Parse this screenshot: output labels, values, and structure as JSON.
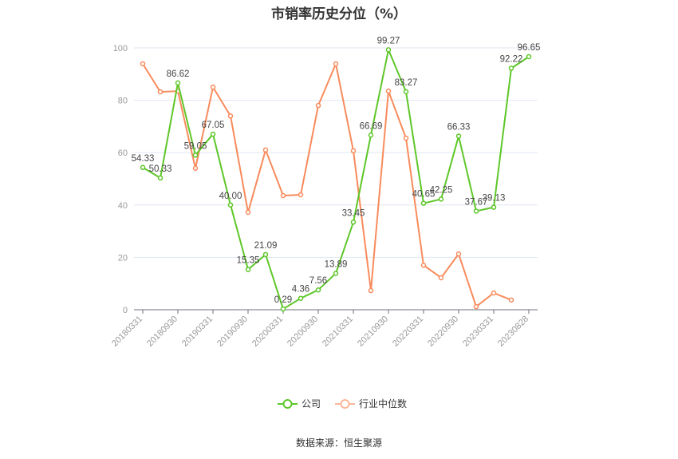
{
  "chart_data": {
    "type": "line",
    "title": "市销率历史分位（%）",
    "xlabel": "",
    "ylabel": "",
    "ylim": [
      0,
      100
    ],
    "yticks": [
      0,
      20,
      40,
      60,
      80,
      100
    ],
    "grid": true,
    "legend_position": "bottom",
    "categories": [
      "20180331",
      "20180630",
      "20180930",
      "20181231",
      "20190331",
      "20190630",
      "20190930",
      "20191231",
      "20200331",
      "20200630",
      "20200930",
      "20201231",
      "20210331",
      "20210630",
      "20210930",
      "20211231",
      "20220331",
      "20220630",
      "20220930",
      "20221231",
      "20230331",
      "20230630",
      "20230828"
    ],
    "xtick_labels": [
      "20180331",
      "20180930",
      "20190331",
      "20190930",
      "20200331",
      "20200930",
      "20210331",
      "20210930",
      "20220331",
      "20220930",
      "20230331",
      "20230828"
    ],
    "series": [
      {
        "name": "公司",
        "color": "#5ec729",
        "show_labels": true,
        "values": [
          54.33,
          50.33,
          86.62,
          59.05,
          67.05,
          40.0,
          15.35,
          21.09,
          0.29,
          4.36,
          7.56,
          13.89,
          33.45,
          66.69,
          99.27,
          83.27,
          40.65,
          42.25,
          66.33,
          37.67,
          39.13,
          92.22,
          96.65
        ]
      },
      {
        "name": "行业中位数",
        "color": "#f88b5c",
        "show_labels": false,
        "values": [
          93.9,
          83.2,
          83.5,
          54.0,
          85.0,
          74.0,
          37.2,
          61.0,
          43.6,
          43.9,
          78.0,
          93.9,
          60.7,
          7.3,
          83.5,
          65.5,
          17.0,
          12.2,
          21.3,
          1.2,
          6.4,
          3.7,
          null
        ]
      }
    ]
  },
  "source": "数据来源：恒生聚源"
}
